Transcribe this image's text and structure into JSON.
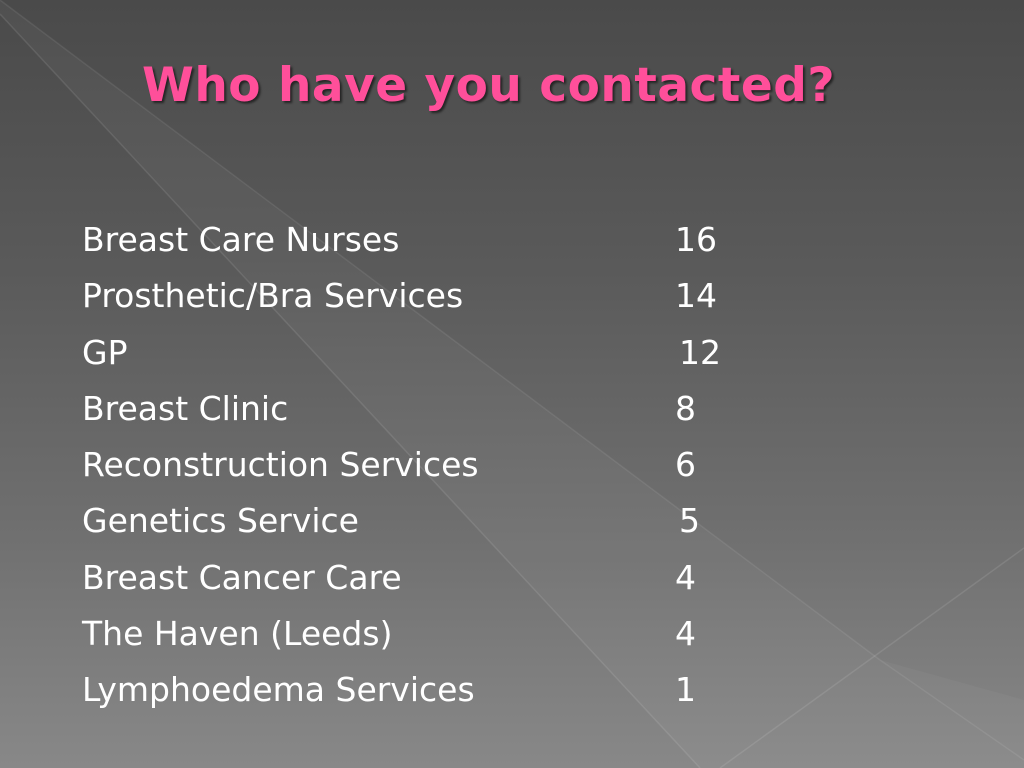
{
  "slide": {
    "title": "Who have you contacted?",
    "colors": {
      "title": "#ff4f9a",
      "text": "#ffffff",
      "background_top": "#4a4a4a",
      "background_bottom": "#888888"
    },
    "rows": [
      {
        "label": "Breast Care Nurses",
        "count": "16"
      },
      {
        "label": "Prosthetic/Bra Services",
        "count": "14"
      },
      {
        "label": "GP",
        "count": "12"
      },
      {
        "label": "Breast Clinic",
        "count": "8"
      },
      {
        "label": "Reconstruction Services",
        "count": "6"
      },
      {
        "label": "Genetics Service",
        "count": "5"
      },
      {
        "label": "Breast Cancer Care",
        "count": "4"
      },
      {
        "label": "The Haven (Leeds)",
        "count": "4"
      },
      {
        "label": "Lymphoedema Services",
        "count": "1"
      }
    ]
  }
}
